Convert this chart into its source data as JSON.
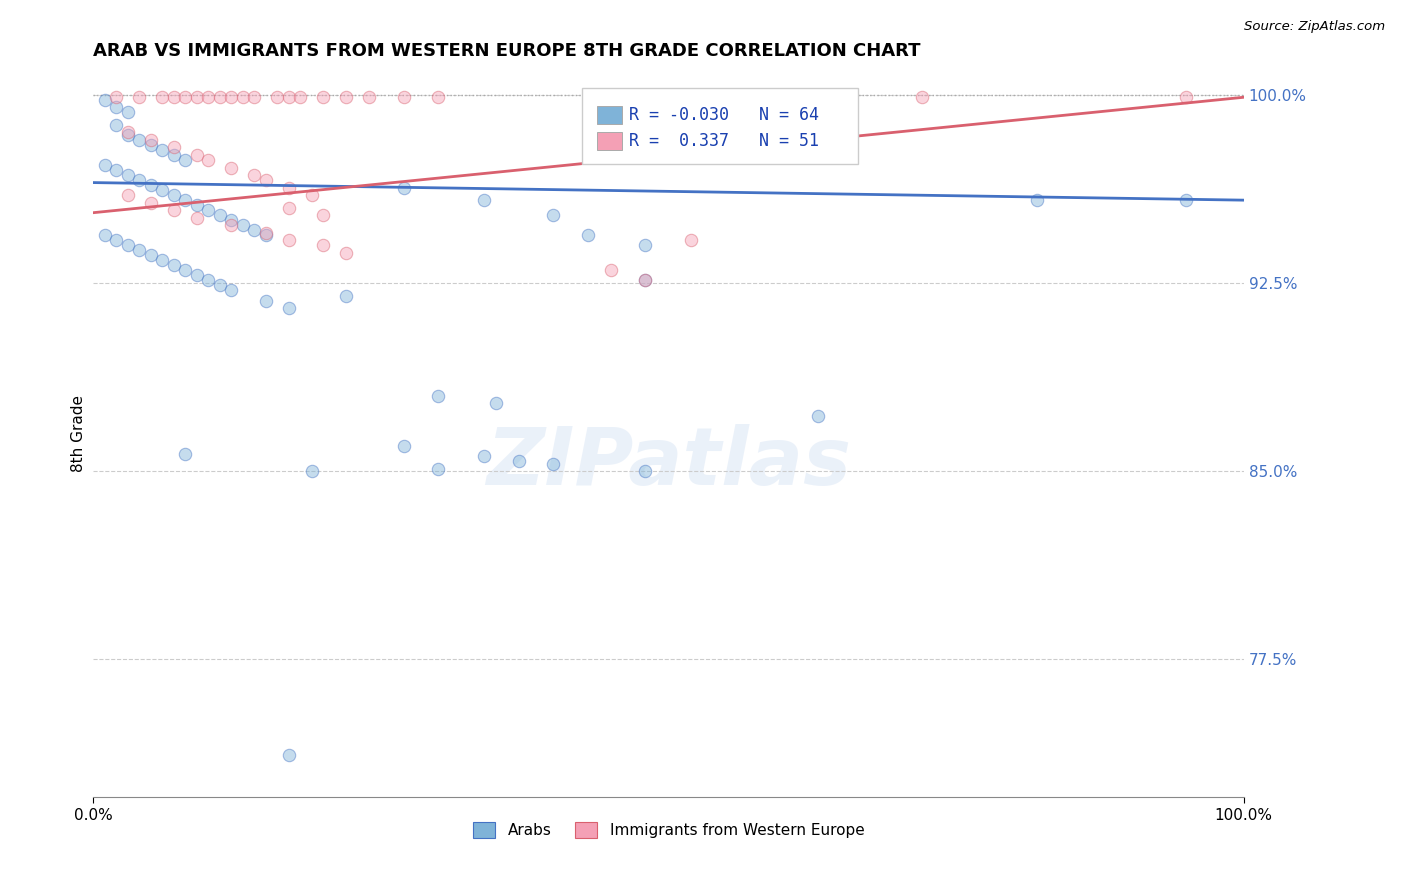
{
  "title": "ARAB VS IMMIGRANTS FROM WESTERN EUROPE 8TH GRADE CORRELATION CHART",
  "source": "Source: ZipAtlas.com",
  "ylabel": "8th Grade",
  "xlim": [
    0.0,
    1.0
  ],
  "ylim": [
    0.72,
    1.01
  ],
  "yticks": [
    0.775,
    0.85,
    0.925,
    1.0
  ],
  "ytick_labels": [
    "77.5%",
    "85.0%",
    "92.5%",
    "100.0%"
  ],
  "blue_color": "#7fb3d8",
  "pink_color": "#f4a0b5",
  "blue_line_color": "#4472c4",
  "pink_line_color": "#d9606e",
  "legend_R_blue": "-0.030",
  "legend_N_blue": "64",
  "legend_R_pink": "0.337",
  "legend_N_pink": "51",
  "watermark": "ZIPatlas",
  "blue_dots": [
    [
      0.01,
      0.998
    ],
    [
      0.02,
      0.995
    ],
    [
      0.03,
      0.993
    ],
    [
      0.02,
      0.988
    ],
    [
      0.03,
      0.984
    ],
    [
      0.04,
      0.982
    ],
    [
      0.05,
      0.98
    ],
    [
      0.06,
      0.978
    ],
    [
      0.07,
      0.976
    ],
    [
      0.08,
      0.974
    ],
    [
      0.01,
      0.972
    ],
    [
      0.02,
      0.97
    ],
    [
      0.03,
      0.968
    ],
    [
      0.04,
      0.966
    ],
    [
      0.05,
      0.964
    ],
    [
      0.06,
      0.962
    ],
    [
      0.07,
      0.96
    ],
    [
      0.08,
      0.958
    ],
    [
      0.09,
      0.956
    ],
    [
      0.1,
      0.954
    ],
    [
      0.11,
      0.952
    ],
    [
      0.12,
      0.95
    ],
    [
      0.13,
      0.948
    ],
    [
      0.14,
      0.946
    ],
    [
      0.15,
      0.944
    ],
    [
      0.01,
      0.944
    ],
    [
      0.02,
      0.942
    ],
    [
      0.03,
      0.94
    ],
    [
      0.04,
      0.938
    ],
    [
      0.05,
      0.936
    ],
    [
      0.06,
      0.934
    ],
    [
      0.07,
      0.932
    ],
    [
      0.08,
      0.93
    ],
    [
      0.09,
      0.928
    ],
    [
      0.1,
      0.926
    ],
    [
      0.11,
      0.924
    ],
    [
      0.12,
      0.922
    ],
    [
      0.15,
      0.918
    ],
    [
      0.17,
      0.915
    ],
    [
      0.27,
      0.963
    ],
    [
      0.34,
      0.958
    ],
    [
      0.4,
      0.952
    ],
    [
      0.43,
      0.944
    ],
    [
      0.48,
      0.94
    ],
    [
      0.48,
      0.926
    ],
    [
      0.22,
      0.92
    ],
    [
      0.3,
      0.88
    ],
    [
      0.35,
      0.877
    ],
    [
      0.27,
      0.86
    ],
    [
      0.34,
      0.856
    ],
    [
      0.37,
      0.854
    ],
    [
      0.4,
      0.853
    ],
    [
      0.08,
      0.857
    ],
    [
      0.19,
      0.85
    ],
    [
      0.3,
      0.851
    ],
    [
      0.48,
      0.85
    ],
    [
      0.63,
      0.872
    ],
    [
      0.82,
      0.958
    ],
    [
      0.95,
      0.958
    ],
    [
      0.17,
      0.737
    ]
  ],
  "pink_dots": [
    [
      0.02,
      0.999
    ],
    [
      0.04,
      0.999
    ],
    [
      0.06,
      0.999
    ],
    [
      0.07,
      0.999
    ],
    [
      0.08,
      0.999
    ],
    [
      0.09,
      0.999
    ],
    [
      0.1,
      0.999
    ],
    [
      0.11,
      0.999
    ],
    [
      0.12,
      0.999
    ],
    [
      0.13,
      0.999
    ],
    [
      0.14,
      0.999
    ],
    [
      0.16,
      0.999
    ],
    [
      0.17,
      0.999
    ],
    [
      0.18,
      0.999
    ],
    [
      0.2,
      0.999
    ],
    [
      0.22,
      0.999
    ],
    [
      0.24,
      0.999
    ],
    [
      0.27,
      0.999
    ],
    [
      0.3,
      0.999
    ],
    [
      0.72,
      0.999
    ],
    [
      0.95,
      0.999
    ],
    [
      0.03,
      0.985
    ],
    [
      0.05,
      0.982
    ],
    [
      0.07,
      0.979
    ],
    [
      0.09,
      0.976
    ],
    [
      0.1,
      0.974
    ],
    [
      0.12,
      0.971
    ],
    [
      0.14,
      0.968
    ],
    [
      0.15,
      0.966
    ],
    [
      0.17,
      0.963
    ],
    [
      0.19,
      0.96
    ],
    [
      0.03,
      0.96
    ],
    [
      0.05,
      0.957
    ],
    [
      0.07,
      0.954
    ],
    [
      0.09,
      0.951
    ],
    [
      0.12,
      0.948
    ],
    [
      0.15,
      0.945
    ],
    [
      0.17,
      0.942
    ],
    [
      0.2,
      0.94
    ],
    [
      0.22,
      0.937
    ],
    [
      0.17,
      0.955
    ],
    [
      0.2,
      0.952
    ],
    [
      0.52,
      0.942
    ],
    [
      0.45,
      0.93
    ],
    [
      0.48,
      0.926
    ]
  ],
  "blue_trend": [
    0.0,
    0.965,
    1.0,
    0.958
  ],
  "pink_trend": [
    0.0,
    0.953,
    1.0,
    0.999
  ]
}
